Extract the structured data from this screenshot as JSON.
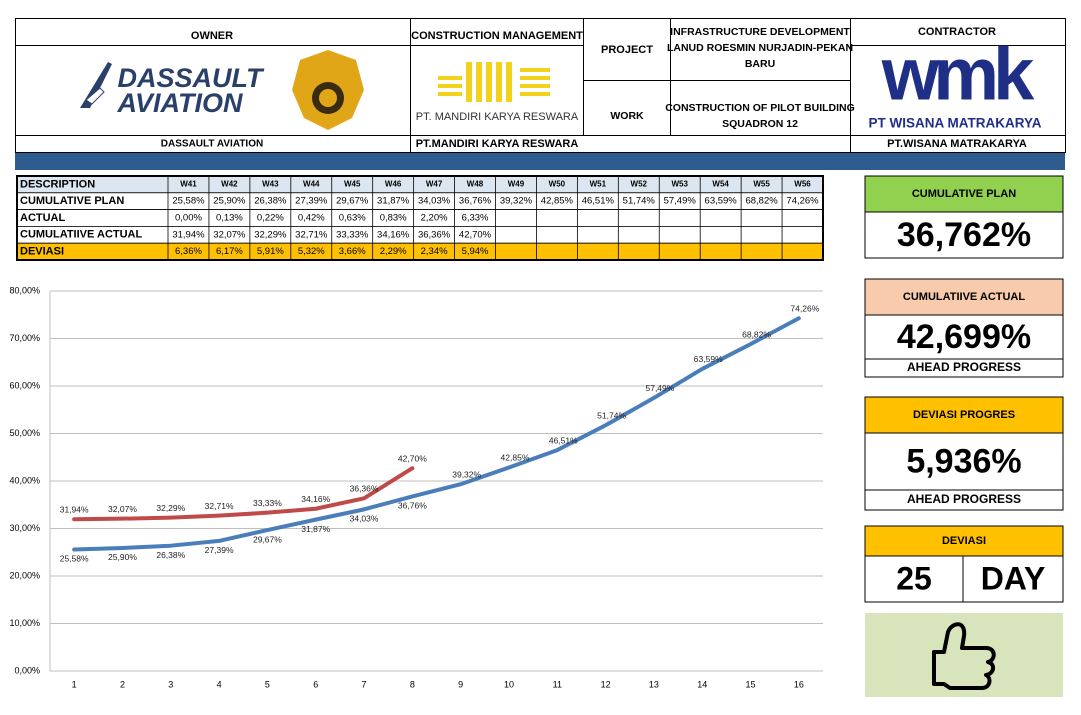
{
  "header": {
    "owner": {
      "label": "OWNER",
      "logo_lines": [
        "DASSAULT",
        "AVIATION"
      ],
      "name": "DASSAULT AVIATION"
    },
    "cm": {
      "label": "CONSTRUCTION MANAGEMENT",
      "logo_text": "PT. MANDIRI KARYA RESWARA",
      "name": "PT.MANDIRI KARYA RESWARA"
    },
    "project": {
      "label": "PROJECT",
      "lines": [
        "INFRASTRUCTURE DEVELOPMENT",
        "LANUD ROESMIN NURJADIN-PEKAN",
        "BARU"
      ]
    },
    "work": {
      "label": "WORK",
      "lines": [
        "CONSTRUCTION OF PILOT BUILDING",
        "SQUADRON 12"
      ]
    },
    "contractor": {
      "label": "CONTRACTOR",
      "logo_text": "wmk",
      "logo_sub": "PT WISANA MATRAKARYA",
      "name": "PT.WISANA MATRAKARYA"
    }
  },
  "table": {
    "header": [
      "DESCRIPTION",
      "W41",
      "W42",
      "W43",
      "W44",
      "W45",
      "W46",
      "W47",
      "W48",
      "W49",
      "W50",
      "W51",
      "W52",
      "W53",
      "W54",
      "W55",
      "W56"
    ],
    "rows": [
      {
        "label": "CUMULATIVE PLAN",
        "cells": [
          "25,58%",
          "25,90%",
          "26,38%",
          "27,39%",
          "29,67%",
          "31,87%",
          "34,03%",
          "36,76%",
          "39,32%",
          "42,85%",
          "46,51%",
          "51,74%",
          "57,49%",
          "63,59%",
          "68,82%",
          "74,26%"
        ]
      },
      {
        "label": "ACTUAL",
        "cells": [
          "0,00%",
          "0,13%",
          "0,22%",
          "0,42%",
          "0,63%",
          "0,83%",
          "2,20%",
          "6,33%"
        ]
      },
      {
        "label": "CUMULATIIVE ACTUAL",
        "cells": [
          "31,94%",
          "32,07%",
          "32,29%",
          "32,71%",
          "33,33%",
          "34,16%",
          "36,36%",
          "42,70%"
        ]
      },
      {
        "label": "DEVIASI",
        "cells": [
          "6,36%",
          "6,17%",
          "5,91%",
          "5,32%",
          "3,66%",
          "2,29%",
          "2,34%",
          "5,94%"
        ]
      }
    ]
  },
  "chart_data": {
    "type": "line",
    "categories": [
      "1",
      "2",
      "3",
      "4",
      "5",
      "6",
      "7",
      "8",
      "9",
      "10",
      "11",
      "12",
      "13",
      "14",
      "15",
      "16"
    ],
    "series": [
      {
        "name": "CUMULATIVE PLAN",
        "color": "#4a7ebb",
        "values": [
          25.58,
          25.9,
          26.38,
          27.39,
          29.67,
          31.87,
          34.03,
          36.76,
          39.32,
          42.85,
          46.51,
          51.74,
          57.49,
          63.59,
          68.82,
          74.26
        ],
        "value_labels": [
          "25,58%",
          "25,90%",
          "26,38%",
          "27,39%",
          "29,67%",
          "31,87%",
          "34,03%",
          "36,76%",
          "39,32%",
          "42,85%",
          "46,51%",
          "51,74%",
          "57,49%",
          "63,59%",
          "68,82%",
          "74,26%"
        ]
      },
      {
        "name": "CUMULATIIVE ACTUAL",
        "color": "#be4b48",
        "values": [
          31.94,
          32.07,
          32.29,
          32.71,
          33.33,
          34.16,
          36.36,
          42.7,
          null,
          null,
          null,
          null,
          null,
          null,
          null,
          null
        ],
        "value_labels": [
          "31,94%",
          "32,07%",
          "32,29%",
          "32,71%",
          "33,33%",
          "34,16%",
          "36,36%",
          "42,70%",
          null,
          null,
          null,
          null,
          null,
          null,
          null,
          null
        ]
      }
    ],
    "ylim": [
      0,
      80
    ],
    "yticks": [
      {
        "value": 0,
        "label": "0,00%"
      },
      {
        "value": 10,
        "label": "10,00%"
      },
      {
        "value": 20,
        "label": "20,00%"
      },
      {
        "value": 30,
        "label": "30,00%"
      },
      {
        "value": 40,
        "label": "40,00%"
      },
      {
        "value": 50,
        "label": "50,00%"
      },
      {
        "value": 60,
        "label": "60,00%"
      },
      {
        "value": 70,
        "label": "70,00%"
      },
      {
        "value": 80,
        "label": "80,00%"
      }
    ],
    "grid": true,
    "legend": false
  },
  "panels": {
    "plan": {
      "title": "CUMULATIVE PLAN",
      "value": "36,762%"
    },
    "actual": {
      "title": "CUMULATIIVE ACTUAL",
      "value": "42,699%",
      "note": "AHEAD PROGRESS"
    },
    "deviation": {
      "title": "DEVIASI PROGRES",
      "value": "5,936%",
      "note": "AHEAD PROGRESS"
    },
    "days": {
      "title": "DEVIASI",
      "value": "25",
      "unit": "DAY"
    }
  }
}
